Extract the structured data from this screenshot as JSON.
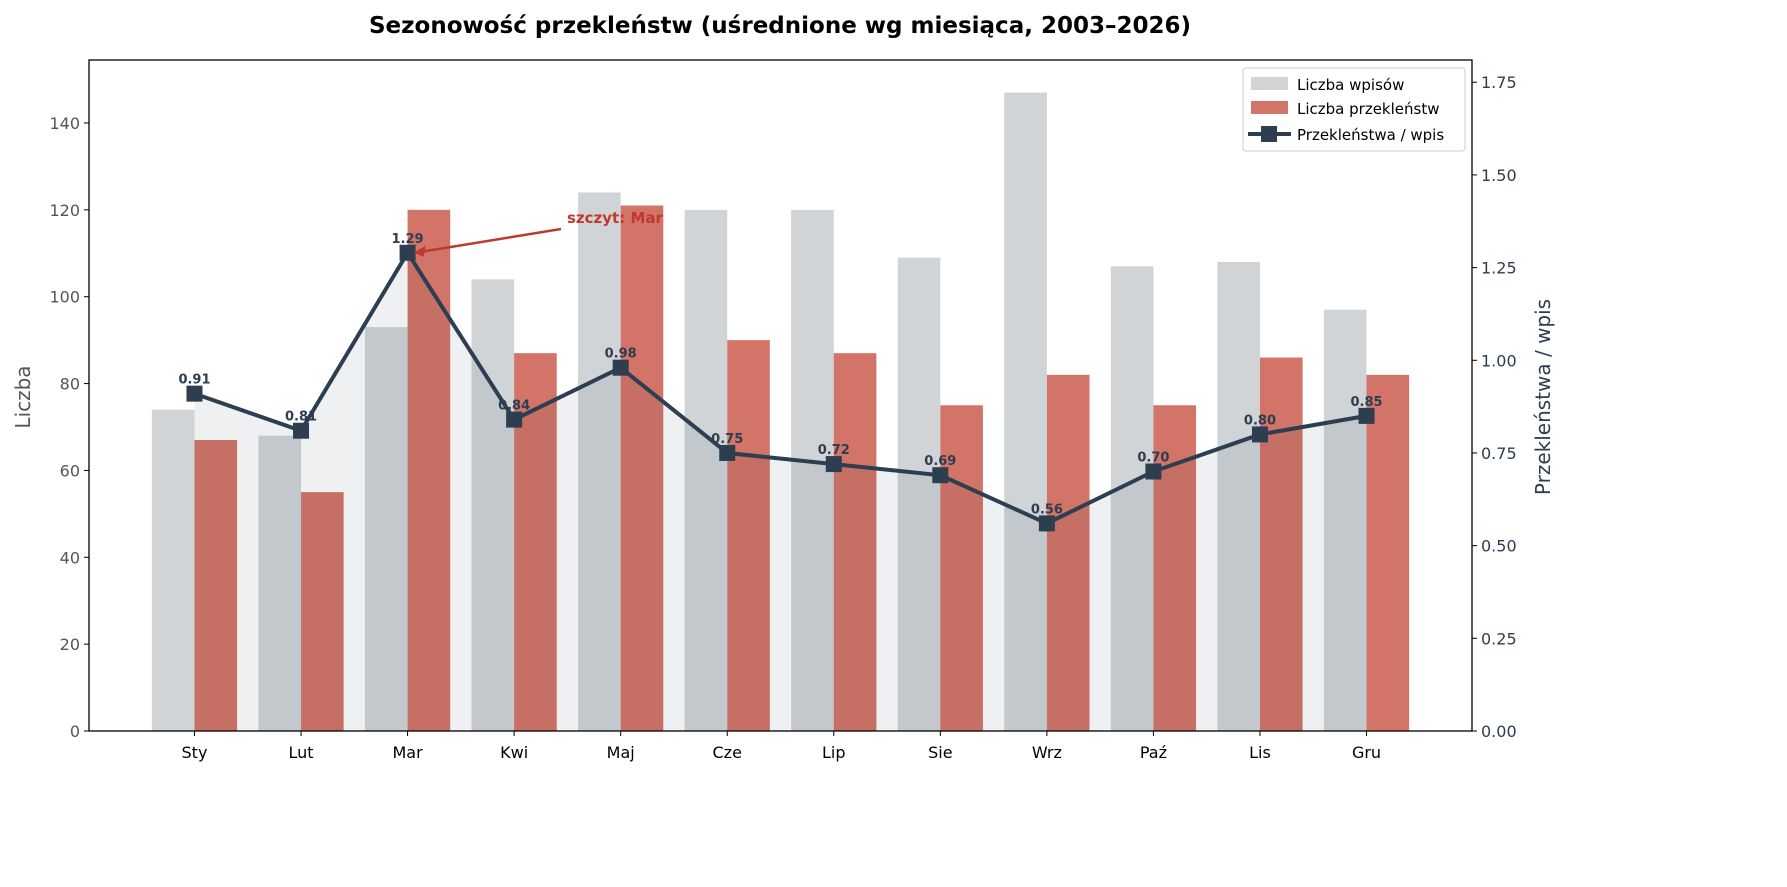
{
  "chart_data": {
    "type": "bar+line",
    "title": "Sezonowość przekleństw (uśrednione wg miesiąca, 2003–2026)",
    "categories": [
      "Sty",
      "Lut",
      "Mar",
      "Kwi",
      "Maj",
      "Cze",
      "Lip",
      "Sie",
      "Wrz",
      "Paź",
      "Lis",
      "Gru"
    ],
    "ylabel": "Liczba",
    "y2label": "Przekleństwa / wpis",
    "ylim": [
      0,
      154.5
    ],
    "y2lim": [
      0,
      1.81
    ],
    "yticks": [
      0,
      20,
      40,
      60,
      80,
      100,
      120,
      140
    ],
    "y2ticks": [
      "0.00",
      "0.25",
      "0.50",
      "0.75",
      "1.00",
      "1.25",
      "1.50",
      "1.75"
    ],
    "grid": false,
    "legend_placement": "top-right",
    "series": [
      {
        "name": "Liczba wpisów",
        "type": "bar",
        "axis": "left",
        "color": "#d1d4d7",
        "values": [
          74,
          68,
          93,
          104,
          124,
          120,
          120,
          109,
          147,
          107,
          108,
          97
        ]
      },
      {
        "name": "Liczba przekleństw",
        "type": "bar",
        "axis": "left",
        "color": "#d37468",
        "values": [
          67,
          55,
          120,
          87,
          121,
          90,
          87,
          75,
          82,
          75,
          86,
          82
        ]
      },
      {
        "name": "Przekleństwa / wpis",
        "type": "line",
        "axis": "right",
        "color": "#2c3e50",
        "marker": "square",
        "values": [
          0.91,
          0.81,
          1.29,
          0.84,
          0.98,
          0.75,
          0.72,
          0.69,
          0.56,
          0.7,
          0.8,
          0.85
        ],
        "labels": [
          "0.91",
          "0.81",
          "1.29",
          "0.84",
          "0.98",
          "0.75",
          "0.72",
          "0.69",
          "0.56",
          "0.70",
          "0.80",
          "0.85"
        ]
      }
    ],
    "annotation": {
      "text": "szczyt: Mar",
      "target": "Mar",
      "color": "#c0392b"
    }
  }
}
